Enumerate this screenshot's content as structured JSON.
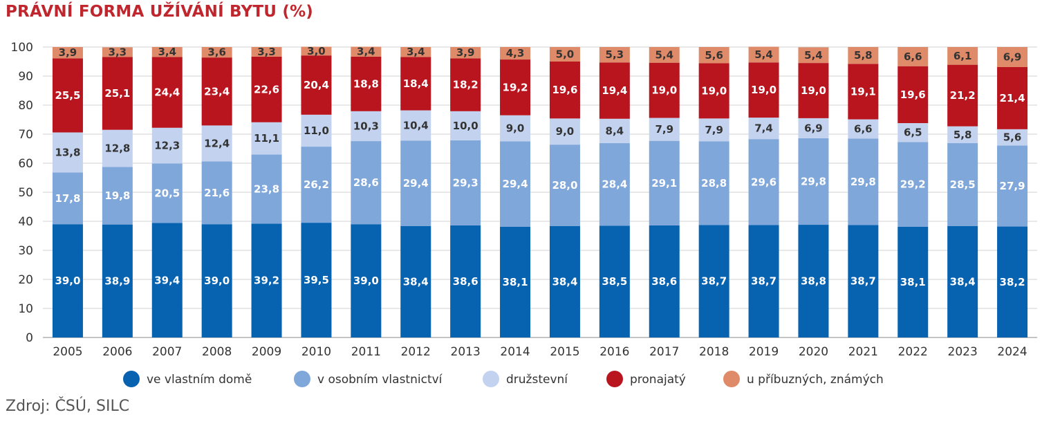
{
  "title": "PRÁVNÍ FORMA UŽÍVÁNÍ BYTU (%)",
  "source": "Zdroj: ČSÚ, SILC",
  "chart_data": {
    "type": "bar",
    "stacked": true,
    "categories": [
      "2005",
      "2006",
      "2007",
      "2008",
      "2009",
      "2010",
      "2011",
      "2012",
      "2013",
      "2014",
      "2015",
      "2016",
      "2017",
      "2018",
      "2019",
      "2020",
      "2021",
      "2022",
      "2023",
      "2024"
    ],
    "ylim": [
      0,
      100
    ],
    "yticks": [
      0,
      10,
      20,
      30,
      40,
      50,
      60,
      70,
      80,
      90,
      100
    ],
    "grid": true,
    "legend_position": "bottom",
    "series": [
      {
        "name": "ve vlastním domě",
        "color": "#0762b0",
        "label_color": "#ffffff",
        "values": [
          39.0,
          38.9,
          39.4,
          39.0,
          39.2,
          39.5,
          39.0,
          38.4,
          38.6,
          38.1,
          38.4,
          38.5,
          38.6,
          38.7,
          38.7,
          38.8,
          38.7,
          38.1,
          38.4,
          38.2
        ],
        "labels": [
          "39,0",
          "38,9",
          "39,4",
          "39,0",
          "39,2",
          "39,5",
          "39,0",
          "38,4",
          "38,6",
          "38,1",
          "38,4",
          "38,5",
          "38,6",
          "38,7",
          "38,7",
          "38,8",
          "38,7",
          "38,1",
          "38,4",
          "38,2"
        ]
      },
      {
        "name": "v osobním vlastnictví",
        "color": "#7fa7da",
        "label_color": "#ffffff",
        "values": [
          17.8,
          19.8,
          20.5,
          21.6,
          23.8,
          26.2,
          28.6,
          29.4,
          29.3,
          29.4,
          28.0,
          28.4,
          29.1,
          28.8,
          29.6,
          29.8,
          29.8,
          29.2,
          28.5,
          27.9
        ],
        "labels": [
          "17,8",
          "19,8",
          "20,5",
          "21,6",
          "23,8",
          "26,2",
          "28,6",
          "29,4",
          "29,3",
          "29,4",
          "28,0",
          "28,4",
          "29,1",
          "28,8",
          "29,6",
          "29,8",
          "29,8",
          "29,2",
          "28,5",
          "27,9"
        ]
      },
      {
        "name": "družstevní",
        "color": "#c3d3ef",
        "label_color": "#333333",
        "values": [
          13.8,
          12.8,
          12.3,
          12.4,
          11.1,
          11.0,
          10.3,
          10.4,
          10.0,
          9.0,
          9.0,
          8.4,
          7.9,
          7.9,
          7.4,
          6.9,
          6.6,
          6.5,
          5.8,
          5.6
        ],
        "labels": [
          "13,8",
          "12,8",
          "12,3",
          "12,4",
          "11,1",
          "11,0",
          "10,3",
          "10,4",
          "10,0",
          "9,0",
          "9,0",
          "8,4",
          "7,9",
          "7,9",
          "7,4",
          "6,9",
          "6,6",
          "6,5",
          "5,8",
          "5,6"
        ]
      },
      {
        "name": "pronajatý",
        "color": "#b8151f",
        "label_color": "#ffffff",
        "values": [
          25.5,
          25.1,
          24.4,
          23.4,
          22.6,
          20.4,
          18.8,
          18.4,
          18.2,
          19.2,
          19.6,
          19.4,
          19.0,
          19.0,
          19.0,
          19.0,
          19.1,
          19.6,
          21.2,
          21.4
        ],
        "labels": [
          "25,5",
          "25,1",
          "24,4",
          "23,4",
          "22,6",
          "20,4",
          "18,8",
          "18,4",
          "18,2",
          "19,2",
          "19,6",
          "19,4",
          "19,0",
          "19,0",
          "19,0",
          "19,0",
          "19,1",
          "19,6",
          "21,2",
          "21,4"
        ]
      },
      {
        "name": "u příbuzných, známých",
        "color": "#df8a68",
        "label_color": "#333333",
        "values": [
          3.9,
          3.3,
          3.4,
          3.6,
          3.3,
          3.0,
          3.4,
          3.4,
          3.9,
          4.3,
          5.0,
          5.3,
          5.4,
          5.6,
          5.4,
          5.4,
          5.8,
          6.6,
          6.1,
          6.9
        ],
        "labels": [
          "3,9",
          "3,3",
          "3,4",
          "3,6",
          "3,3",
          "3,0",
          "3,4",
          "3,4",
          "3,9",
          "4,3",
          "5,0",
          "5,3",
          "5,4",
          "5,6",
          "5,4",
          "5,4",
          "5,8",
          "6,6",
          "6,1",
          "6,9"
        ]
      }
    ]
  }
}
